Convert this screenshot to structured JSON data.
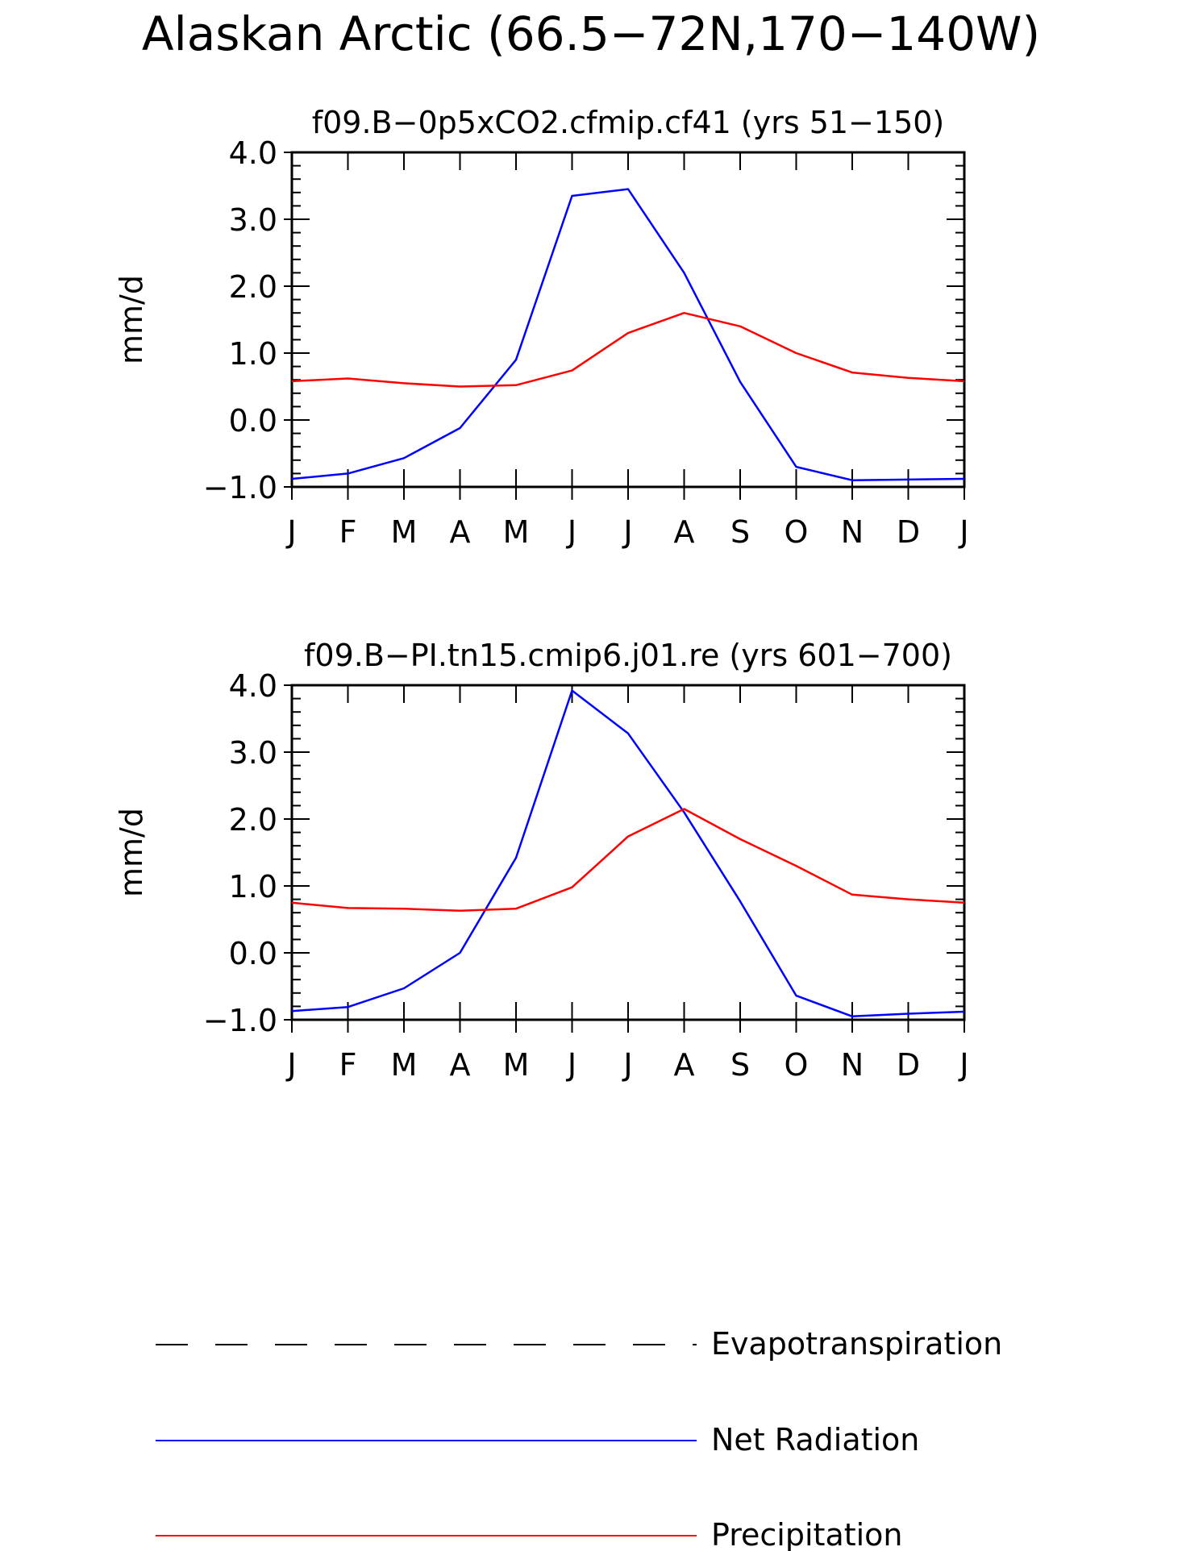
{
  "figure": {
    "title": "Alaskan Arctic (66.5−72N,170−140W)"
  },
  "colors": {
    "net_radiation": "#0000ff",
    "precipitation": "#ff0000",
    "evapotranspiration": "#000000",
    "axes": "#000000"
  },
  "legend": {
    "placement": "bottom",
    "items": [
      {
        "label": "Evapotranspiration",
        "style": "dashed",
        "color": "#000000"
      },
      {
        "label": "Net Radiation",
        "style": "solid",
        "color": "#0000ff"
      },
      {
        "label": "Precipitation",
        "style": "solid",
        "color": "#ff0000"
      }
    ]
  },
  "chart_data": [
    {
      "type": "line",
      "title": "f09.B−0p5xCO2.cfmip.cf41 (yrs 51−150)",
      "xlabel": "",
      "ylabel": "mm/d",
      "categories": [
        "J",
        "F",
        "M",
        "A",
        "M",
        "J",
        "J",
        "A",
        "S",
        "O",
        "N",
        "D",
        "J"
      ],
      "y_ticks": [
        "−1.0",
        "0.0",
        "1.0",
        "2.0",
        "3.0",
        "4.0"
      ],
      "ylim": [
        -1.0,
        4.0
      ],
      "grid": false,
      "series": [
        {
          "name": "Net Radiation",
          "key": "net_radiation",
          "values": [
            -0.88,
            -0.8,
            -0.57,
            -0.12,
            0.9,
            3.35,
            3.45,
            2.2,
            0.57,
            -0.7,
            -0.9,
            -0.89,
            -0.88
          ]
        },
        {
          "name": "Precipitation",
          "key": "precipitation",
          "values": [
            0.58,
            0.62,
            0.55,
            0.5,
            0.52,
            0.74,
            1.3,
            1.6,
            1.4,
            1.0,
            0.71,
            0.63,
            0.58
          ]
        }
      ]
    },
    {
      "type": "line",
      "title": "f09.B−PI.tn15.cmip6.j01.re (yrs 601−700)",
      "xlabel": "",
      "ylabel": "mm/d",
      "categories": [
        "J",
        "F",
        "M",
        "A",
        "M",
        "J",
        "J",
        "A",
        "S",
        "O",
        "N",
        "D",
        "J"
      ],
      "y_ticks": [
        "−1.0",
        "0.0",
        "1.0",
        "2.0",
        "3.0",
        "4.0"
      ],
      "ylim": [
        -1.0,
        4.0
      ],
      "grid": false,
      "series": [
        {
          "name": "Net Radiation",
          "key": "net_radiation",
          "values": [
            -0.87,
            -0.81,
            -0.53,
            0.0,
            1.42,
            3.92,
            3.28,
            2.1,
            0.77,
            -0.64,
            -0.95,
            -0.91,
            -0.88
          ]
        },
        {
          "name": "Precipitation",
          "key": "precipitation",
          "values": [
            0.75,
            0.67,
            0.66,
            0.63,
            0.66,
            0.98,
            1.74,
            2.15,
            1.7,
            1.3,
            0.87,
            0.8,
            0.75
          ]
        }
      ]
    }
  ]
}
